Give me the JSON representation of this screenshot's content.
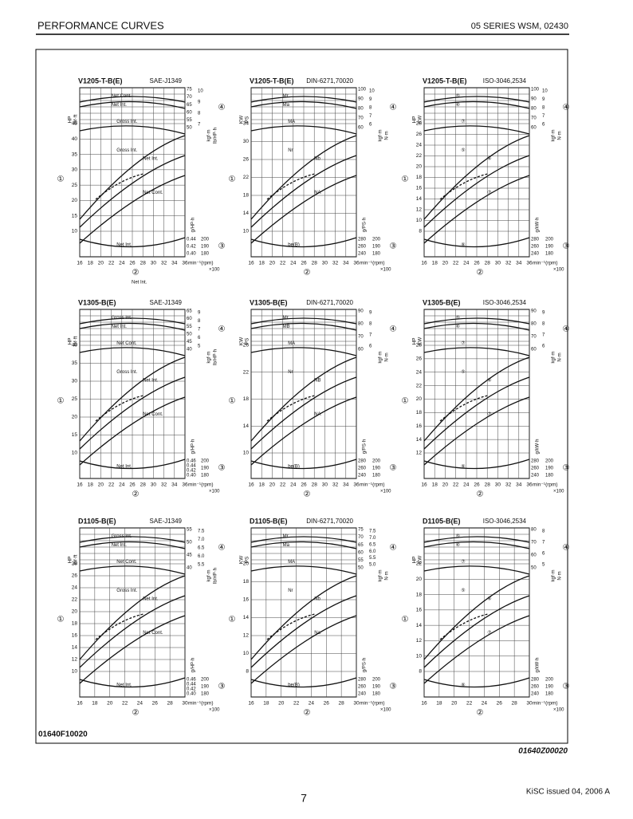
{
  "header": {
    "left": "PERFORMANCE CURVES",
    "right": "05 SERIES WSM, 02430"
  },
  "panels": [
    {
      "title": "V1205-T-B(E)",
      "standard": "SAE-J1349",
      "units": [
        "HP",
        "lbf·ft",
        "kgf·m",
        "lb/HP·h",
        "g/HP·h"
      ],
      "left_ticks": [
        "45",
        "40",
        "35",
        "30",
        "25",
        "20",
        "15",
        "10"
      ],
      "right_outer": [
        "75",
        "70",
        "65",
        "60",
        "55",
        "50"
      ],
      "right_inner": [
        "10",
        "9",
        "8",
        "7"
      ],
      "low_outer": [
        "0.44",
        "0.42",
        "0.40"
      ],
      "low_inner": [
        "200",
        "190",
        "180"
      ],
      "x_ticks": [
        "16",
        "18",
        "20",
        "22",
        "24",
        "26",
        "28",
        "30",
        "32",
        "34",
        "36"
      ],
      "x_unit": "min⁻¹(rpm)",
      "x_mult": "×100",
      "labels": [
        "Net Cont.",
        "Net Int.",
        "Gross Int.",
        "Gross Int.",
        "Net Int.",
        "Net Cont.",
        "Net Int."
      ],
      "markers": [
        "①",
        "②",
        "③",
        "④"
      ],
      "note": "Net Int."
    },
    {
      "title": "V1205-T-B(E)",
      "standard": "DIN-6271,70020",
      "units": [
        "KW",
        "PS",
        "kgf·m",
        "N·m",
        "g/PS·h"
      ],
      "left_ticks": [
        "34",
        "30",
        "26",
        "22",
        "18",
        "14",
        "10"
      ],
      "right_outer": [
        "100",
        "90",
        "80",
        "70",
        "60"
      ],
      "right_inner": [
        "10",
        "9",
        "8",
        "7",
        "6"
      ],
      "low_outer": [
        "280",
        "260",
        "240"
      ],
      "low_inner": [
        "200",
        "190",
        "180"
      ],
      "x_ticks": [
        "16",
        "18",
        "20",
        "22",
        "24",
        "26",
        "28",
        "30",
        "32",
        "34",
        "36"
      ],
      "x_unit": "min⁻¹(rpm)",
      "x_mult": "×100",
      "labels": [
        "Mr",
        "Ma",
        "MA",
        "Nr",
        "Nb",
        "NA",
        "be(B)"
      ],
      "markers": [
        "①",
        "②",
        "③",
        "④"
      ]
    },
    {
      "title": "V1205-T-B(E)",
      "standard": "ISO-3046,2534",
      "units": [
        "HP",
        "KW",
        "kgf·m",
        "N·m",
        "g/kW·h"
      ],
      "left_ticks": [
        "28",
        "26",
        "24",
        "22",
        "20",
        "18",
        "16",
        "14",
        "12",
        "10",
        "8"
      ],
      "right_outer": [
        "100",
        "90",
        "80",
        "70",
        "60"
      ],
      "right_inner": [
        "10",
        "9",
        "8",
        "7",
        "6"
      ],
      "low_outer": [
        "280",
        "260",
        "240"
      ],
      "low_inner": [
        "200",
        "190",
        "180"
      ],
      "x_ticks": [
        "16",
        "18",
        "20",
        "22",
        "24",
        "26",
        "28",
        "30",
        "32",
        "34",
        "36"
      ],
      "x_unit": "min⁻¹(rpm)",
      "x_mult": "×100",
      "labels": [
        "⑤",
        "⑥",
        "⑦",
        "⑤",
        "⑥",
        "⑦",
        "⑥"
      ],
      "markers": [
        "①",
        "②",
        "③",
        "④"
      ]
    },
    {
      "title": "V1305-B(E)",
      "standard": "SAE-J1349",
      "units": [
        "HP",
        "lbf·ft",
        "kgf·m",
        "lb/HP·h",
        "g/HP·h"
      ],
      "left_ticks": [
        "40",
        "35",
        "30",
        "25",
        "20",
        "15",
        "10"
      ],
      "right_outer": [
        "65",
        "60",
        "55",
        "50",
        "45",
        "40"
      ],
      "right_inner": [
        "9",
        "8",
        "7",
        "6",
        "5"
      ],
      "low_outer": [
        "0.46",
        "0.44",
        "0.42",
        "0.40"
      ],
      "low_inner": [
        "200",
        "190",
        "180"
      ],
      "x_ticks": [
        "16",
        "18",
        "20",
        "22",
        "24",
        "26",
        "28",
        "30",
        "32",
        "34",
        "36"
      ],
      "x_unit": "min⁻¹(rpm)",
      "x_mult": "×100",
      "labels": [
        "Gross Int.",
        "Net Int.",
        "Net Cont.",
        "Gross Int.",
        "Net Int.",
        "Net Cont.",
        "Net Int."
      ],
      "markers": [
        "①",
        "②",
        "③",
        "④"
      ]
    },
    {
      "title": "V1305-B(E)",
      "standard": "DIN-6271,70020",
      "units": [
        "KW",
        "PS",
        "kgf·m",
        "N·m",
        "g/PS·h"
      ],
      "left_ticks": [
        "26",
        "22",
        "18",
        "14",
        "10"
      ],
      "right_outer": [
        "90",
        "80",
        "70",
        "60"
      ],
      "right_inner": [
        "9",
        "8",
        "7",
        "6"
      ],
      "low_outer": [
        "280",
        "260",
        "240"
      ],
      "low_inner": [
        "200",
        "190",
        "180"
      ],
      "x_ticks": [
        "16",
        "18",
        "20",
        "22",
        "24",
        "26",
        "28",
        "30",
        "32",
        "34",
        "36"
      ],
      "x_unit": "min⁻¹(rpm)",
      "x_mult": "×100",
      "labels": [
        "Mr",
        "MB",
        "MA",
        "Nr",
        "NB",
        "NA",
        "be(B)"
      ],
      "markers": [
        "①",
        "②",
        "③",
        "④"
      ]
    },
    {
      "title": "V1305-B(E)",
      "standard": "ISO-3046,2534",
      "units": [
        "HP",
        "KW",
        "kgf·m",
        "N·m",
        "g/kW·h"
      ],
      "left_ticks": [
        "28",
        "26",
        "24",
        "22",
        "20",
        "18",
        "16",
        "14",
        "12"
      ],
      "right_outer": [
        "90",
        "80",
        "70",
        "60"
      ],
      "right_inner": [
        "9",
        "8",
        "7",
        "6"
      ],
      "low_outer": [
        "280",
        "260",
        "240"
      ],
      "low_inner": [
        "200",
        "190",
        "180"
      ],
      "x_ticks": [
        "16",
        "18",
        "20",
        "22",
        "24",
        "26",
        "28",
        "30",
        "32",
        "34",
        "36"
      ],
      "x_unit": "min⁻¹(rpm)",
      "x_mult": "×100",
      "labels": [
        "⑤",
        "⑥",
        "⑦",
        "⑤",
        "⑥",
        "⑦",
        "⑥"
      ],
      "markers": [
        "①",
        "②",
        "③",
        "④"
      ]
    },
    {
      "title": "D1105-B(E)",
      "standard": "SAE-J1349",
      "units": [
        "HP",
        "lbf·ft",
        "kgf·m",
        "lb/HP·h",
        "g/HP·h"
      ],
      "left_ticks": [
        "28",
        "26",
        "24",
        "22",
        "20",
        "18",
        "16",
        "14",
        "12",
        "10"
      ],
      "right_outer": [
        "55",
        "50",
        "45",
        "40"
      ],
      "right_inner": [
        "7.5",
        "7.0",
        "6.5",
        "6.0",
        "5.5"
      ],
      "low_outer": [
        "0.46",
        "0.44",
        "0.42",
        "0.40"
      ],
      "low_inner": [
        "200",
        "190",
        "180"
      ],
      "x_ticks": [
        "16",
        "18",
        "20",
        "22",
        "24",
        "26",
        "28",
        "30"
      ],
      "x_unit": "min⁻¹(rpm)",
      "x_mult": "×100",
      "labels": [
        "Gross Int.",
        "Net Int.",
        "Net Cont.",
        "Gross Int.",
        "Net Int.",
        "Net Cont.",
        "Net Int."
      ],
      "markers": [
        "①",
        "②",
        "③",
        "④"
      ]
    },
    {
      "title": "D1105-B(E)",
      "standard": "DIN-6271,70020",
      "units": [
        "KW",
        "PS",
        "kgf·m",
        "N·m",
        "g/PS·h"
      ],
      "left_ticks": [
        "20",
        "18",
        "16",
        "14",
        "12",
        "10",
        "8"
      ],
      "right_outer": [
        "75",
        "70",
        "65",
        "60",
        "55",
        "50"
      ],
      "right_inner": [
        "7.5",
        "7.0",
        "6.5",
        "6.0",
        "5.5",
        "5.0"
      ],
      "low_outer": [
        "280",
        "260",
        "240"
      ],
      "low_inner": [
        "200",
        "190",
        "180"
      ],
      "x_ticks": [
        "16",
        "18",
        "20",
        "22",
        "24",
        "26",
        "28",
        "30"
      ],
      "x_unit": "min⁻¹(rpm)",
      "x_mult": "×100",
      "labels": [
        "Mr",
        "Ma",
        "MA",
        "Nr",
        "Nb",
        "Na",
        "be(B)"
      ],
      "markers": [
        "①",
        "②",
        "③",
        "④"
      ]
    },
    {
      "title": "D1105-B(E)",
      "standard": "ISO-3046,2534",
      "units": [
        "HP",
        "KW",
        "kgf·m",
        "N·m",
        "g/kW·h"
      ],
      "left_ticks": [
        "22",
        "20",
        "18",
        "16",
        "14",
        "12",
        "10",
        "8"
      ],
      "right_outer": [
        "80",
        "70",
        "60",
        "50"
      ],
      "right_inner": [
        "8",
        "7",
        "6",
        "5"
      ],
      "low_outer": [
        "280",
        "260",
        "240"
      ],
      "low_inner": [
        "200",
        "190",
        "180"
      ],
      "x_ticks": [
        "16",
        "18",
        "20",
        "22",
        "24",
        "26",
        "28",
        "30"
      ],
      "x_unit": "min⁻¹(rpm)",
      "x_mult": "×100",
      "labels": [
        "⑤",
        "⑥",
        "⑦",
        "⑤",
        "⑥",
        "⑦",
        "⑥"
      ],
      "markers": [
        "①",
        "②",
        "③",
        "④"
      ]
    }
  ],
  "figure_id": "01640F10020",
  "figure_ref": "01640Z00020",
  "footer": {
    "page": "7",
    "issue": "KiSC issued 04, 2006 A"
  }
}
